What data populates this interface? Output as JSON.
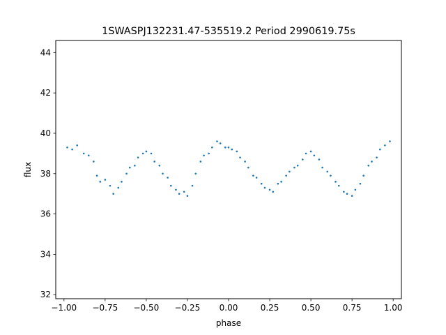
{
  "chart_data": {
    "type": "scatter",
    "title": "1SWASPJ132231.47-535519.2 Period 2990619.75s",
    "xlabel": "phase",
    "ylabel": "flux",
    "xlim": [
      -1.05,
      1.05
    ],
    "ylim": [
      31.8,
      44.6
    ],
    "xticks": [
      -1.0,
      -0.75,
      -0.5,
      -0.25,
      0.0,
      0.25,
      0.5,
      0.75,
      1.0
    ],
    "xtick_labels": [
      "−1.00",
      "−0.75",
      "−0.50",
      "−0.25",
      "0.00",
      "0.25",
      "0.50",
      "0.75",
      "1.00"
    ],
    "yticks": [
      32,
      34,
      36,
      38,
      40,
      42,
      44
    ],
    "ytick_labels": [
      "32",
      "34",
      "36",
      "38",
      "40",
      "42",
      "44"
    ],
    "grid": false,
    "legend": "none",
    "point_color": "#1f77b4",
    "series": [
      {
        "x": [
          -0.98,
          -0.95,
          -0.92,
          -0.88,
          -0.85,
          -0.82,
          -0.8,
          -0.78,
          -0.75,
          -0.72,
          -0.7,
          -0.67,
          -0.65,
          -0.62,
          -0.6,
          -0.57,
          -0.55,
          -0.52,
          -0.5,
          -0.47,
          -0.45,
          -0.42,
          -0.4,
          -0.37,
          -0.35,
          -0.32,
          -0.3,
          -0.27,
          -0.25,
          -0.22,
          -0.2,
          -0.17,
          -0.15,
          -0.12,
          -0.1,
          -0.07,
          -0.05,
          -0.02,
          0.0,
          0.02,
          0.05,
          0.07,
          0.1,
          0.12,
          0.15,
          0.17,
          0.2,
          0.22,
          0.25,
          0.27,
          0.3,
          0.32,
          0.35,
          0.37,
          0.4,
          0.42,
          0.45,
          0.47,
          0.5,
          0.52,
          0.55,
          0.57,
          0.6,
          0.62,
          0.65,
          0.67,
          0.7,
          0.72,
          0.75,
          0.77,
          0.8,
          0.82,
          0.85,
          0.87,
          0.9,
          0.92,
          0.95,
          0.98
        ],
        "y": [
          39.3,
          39.2,
          39.4,
          39.0,
          38.9,
          38.6,
          37.9,
          37.6,
          37.7,
          37.4,
          37.0,
          37.3,
          37.6,
          38.0,
          38.3,
          38.4,
          38.8,
          39.0,
          39.1,
          39.0,
          38.6,
          38.4,
          38.0,
          37.8,
          37.4,
          37.2,
          37.0,
          37.1,
          36.9,
          37.4,
          38.0,
          38.6,
          38.9,
          39.0,
          39.3,
          39.6,
          39.5,
          39.3,
          39.3,
          39.2,
          39.1,
          38.8,
          38.6,
          38.3,
          37.9,
          37.8,
          37.5,
          37.3,
          37.2,
          37.1,
          37.5,
          37.6,
          37.9,
          38.1,
          38.3,
          38.4,
          38.7,
          39.0,
          39.1,
          38.9,
          38.7,
          38.3,
          38.1,
          37.9,
          37.6,
          37.4,
          37.1,
          37.0,
          36.9,
          37.2,
          37.5,
          37.9,
          38.4,
          38.6,
          38.8,
          39.2,
          39.4,
          39.6
        ]
      }
    ]
  }
}
